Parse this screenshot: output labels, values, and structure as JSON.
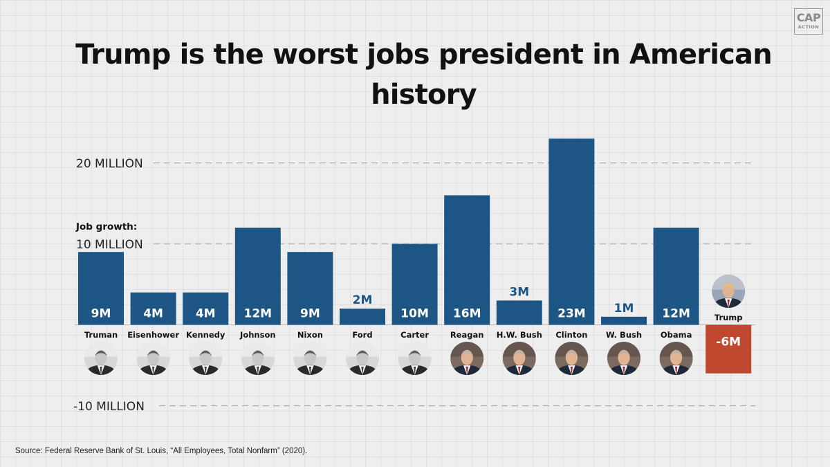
{
  "logo": {
    "line1": "CAP",
    "line2": "ACTION"
  },
  "title": "Trump is the worst jobs president in American history",
  "source": "Source: Federal Reserve Bank of St. Louis, “All Employees, Total Nonfarm” (2020).",
  "chart_data": {
    "type": "bar",
    "title": "Trump is the worst jobs president in American history",
    "ylabel": "Job growth:",
    "y_ticks": [
      {
        "value": 20,
        "label": "20 MILLION"
      },
      {
        "value": 10,
        "label": "10 MILLION"
      },
      {
        "value": -10,
        "label": "-10 MILLION"
      }
    ],
    "ylim": [
      -10.5,
      23.5
    ],
    "grid": "dashed horizontal lines at tick values",
    "categories": [
      "Truman",
      "Eisenhower",
      "Kennedy",
      "Johnson",
      "Nixon",
      "Ford",
      "Carter",
      "Reagan",
      "H.W. Bush",
      "Clinton",
      "W. Bush",
      "Obama",
      "Trump"
    ],
    "values": [
      9,
      4,
      4,
      12,
      9,
      2,
      10,
      16,
      3,
      23,
      1,
      12,
      -6
    ],
    "data_labels": [
      "9M",
      "4M",
      "4M",
      "12M",
      "9M",
      "2M",
      "10M",
      "16M",
      "3M",
      "23M",
      "1M",
      "12M",
      "-6M"
    ],
    "colors": {
      "positive": "#1d5684",
      "negative": "#c0482f",
      "label_on_bar": "#ffffff",
      "label_above_bar": "#1d5684"
    },
    "portrait_icons": [
      "truman-portrait-icon",
      "eisenhower-portrait-icon",
      "kennedy-portrait-icon",
      "johnson-portrait-icon",
      "nixon-portrait-icon",
      "ford-portrait-icon",
      "carter-portrait-icon",
      "reagan-portrait-icon",
      "hw-bush-portrait-icon",
      "clinton-portrait-icon",
      "w-bush-portrait-icon",
      "obama-portrait-icon",
      "trump-portrait-icon"
    ]
  }
}
